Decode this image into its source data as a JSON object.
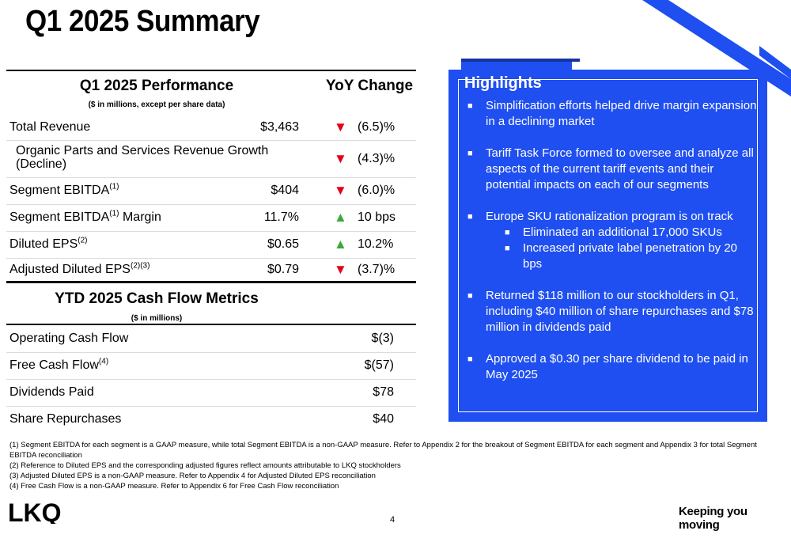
{
  "title": "Q1 2025 Summary",
  "performance": {
    "header": "Q1 2025 Performance",
    "subheader": "($ in millions, except per share data)",
    "yoy_header": "YoY Change",
    "rows": [
      {
        "label": "Total Revenue",
        "sup": "",
        "label_suffix": "",
        "value": "$3,463",
        "direction": "down",
        "change": "(6.5)%"
      },
      {
        "label": "Organic Parts and Services Revenue Growth (Decline)",
        "sup": "",
        "label_suffix": "",
        "value": "",
        "direction": "down",
        "change": "(4.3)%"
      },
      {
        "label": "Segment EBITDA",
        "sup": "(1)",
        "label_suffix": "",
        "value": "$404",
        "direction": "down",
        "change": "(6.0)%"
      },
      {
        "label": "Segment EBITDA",
        "sup": "(1)",
        "label_suffix": " Margin",
        "value": "11.7%",
        "direction": "up",
        "change": "10 bps"
      },
      {
        "label": "Diluted EPS",
        "sup": "(2)",
        "label_suffix": "",
        "value": "$0.65",
        "direction": "up",
        "change": "10.2%"
      },
      {
        "label": "Adjusted Diluted EPS",
        "sup": "(2)(3)",
        "label_suffix": "",
        "value": "$0.79",
        "direction": "down",
        "change": "(3.7)%"
      }
    ],
    "arrows": {
      "up": "▲",
      "down": "▼"
    }
  },
  "cashflow": {
    "header": "YTD 2025 Cash Flow Metrics",
    "subheader": "($ in millions)",
    "rows": [
      {
        "label": "Operating Cash Flow",
        "sup": "",
        "value": "$(3)"
      },
      {
        "label": "Free Cash Flow",
        "sup": "(4)",
        "value": "$(57)"
      },
      {
        "label": "Dividends Paid",
        "sup": "",
        "value": "$78"
      },
      {
        "label": "Share Repurchases",
        "sup": "",
        "value": "$40"
      }
    ]
  },
  "highlights": {
    "title": "Highlights",
    "bullet": "■",
    "items": [
      {
        "text": "Simplification efforts helped drive margin expansion in a declining market",
        "subitems": []
      },
      {
        "text": "Tariff Task Force formed to oversee and analyze all aspects of the current tariff events and their potential impacts on each of our segments",
        "subitems": []
      },
      {
        "text": "Europe SKU rationalization program is on track",
        "subitems": [
          "Eliminated an additional 17,000 SKUs",
          "Increased private label penetration by 20 bps"
        ]
      },
      {
        "text": "Returned $118 million to our stockholders in Q1, including $40 million of share repurchases and $78 million in dividends paid",
        "subitems": []
      },
      {
        "text": "Approved a $0.30 per share dividend to be paid in May 2025",
        "subitems": []
      }
    ]
  },
  "footnotes": [
    "(1) Segment EBITDA for each segment is a GAAP measure, while total Segment EBITDA is a non-GAAP measure. Refer to Appendix 2 for the breakout of Segment EBITDA for each segment and Appendix 3 for total Segment EBITDA reconciliation",
    "(2) Reference to Diluted EPS and the corresponding adjusted figures reflect amounts attributable to LKQ stockholders",
    "(3) Adjusted Diluted EPS is a non-GAAP measure. Refer to Appendix 4 for Adjusted Diluted EPS reconciliation",
    "(4) Free Cash Flow is a non-GAAP measure. Refer to Appendix 6 for Free Cash Flow reconciliation"
  ],
  "footer": {
    "logo_text": "LKQ",
    "page_number": "4",
    "tagline": "Keeping you moving"
  },
  "colors": {
    "brand_blue": "#1f4ff0",
    "dark_blue": "#14339e",
    "down_red": "#e2001a",
    "up_green": "#3aa935"
  }
}
